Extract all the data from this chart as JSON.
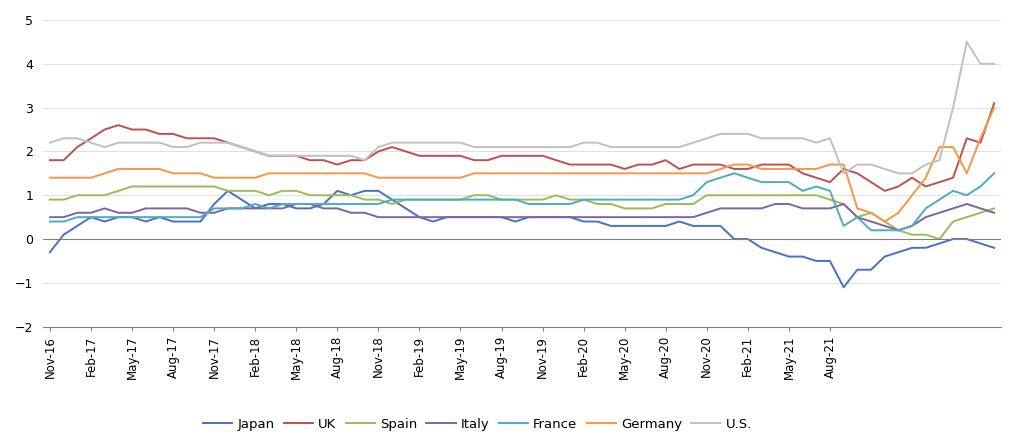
{
  "title": "",
  "ylim": [
    -2,
    5
  ],
  "yticks": [
    -2,
    -1,
    0,
    1,
    2,
    3,
    4,
    5
  ],
  "colors": {
    "Japan": "#4472C4",
    "UK": "#C0504D",
    "Spain": "#9BBB59",
    "Italy": "#8064A2",
    "France": "#4BACC6",
    "Germany": "#F79646",
    "U.S.": "#C0C0C0"
  },
  "series": {
    "Japan": [
      -0.3,
      0.1,
      0.3,
      0.5,
      0.4,
      0.5,
      0.5,
      0.4,
      0.5,
      0.4,
      0.4,
      0.4,
      0.8,
      1.1,
      0.9,
      0.7,
      0.8,
      0.8,
      0.7,
      0.7,
      0.8,
      1.1,
      1.0,
      1.1,
      1.1,
      0.9,
      0.7,
      0.5,
      0.4,
      0.5,
      0.5,
      0.5,
      0.5,
      0.5,
      0.4,
      0.5,
      0.5,
      0.5,
      0.5,
      0.4,
      0.4,
      0.3,
      0.3,
      0.3,
      0.3,
      0.3,
      0.4,
      0.3,
      0.3,
      0.3,
      0.0,
      0.0,
      -0.2,
      -0.3,
      -0.4,
      -0.4,
      -0.5,
      -0.5,
      -1.1,
      -0.7,
      -0.7,
      -0.4,
      -0.3,
      -0.2,
      -0.2,
      -0.1,
      0.0,
      0.0,
      -0.1,
      -0.2
    ],
    "UK": [
      1.8,
      1.8,
      2.1,
      2.3,
      2.5,
      2.6,
      2.5,
      2.5,
      2.4,
      2.4,
      2.3,
      2.3,
      2.3,
      2.2,
      2.1,
      2.0,
      1.9,
      1.9,
      1.9,
      1.8,
      1.8,
      1.7,
      1.8,
      1.8,
      2.0,
      2.1,
      2.0,
      1.9,
      1.9,
      1.9,
      1.9,
      1.8,
      1.8,
      1.9,
      1.9,
      1.9,
      1.9,
      1.8,
      1.7,
      1.7,
      1.7,
      1.7,
      1.6,
      1.7,
      1.7,
      1.8,
      1.6,
      1.7,
      1.7,
      1.7,
      1.6,
      1.6,
      1.7,
      1.7,
      1.7,
      1.5,
      1.4,
      1.3,
      1.6,
      1.5,
      1.3,
      1.1,
      1.2,
      1.4,
      1.2,
      1.3,
      1.4,
      2.3,
      2.2,
      3.1
    ],
    "Spain": [
      0.9,
      0.9,
      1.0,
      1.0,
      1.0,
      1.1,
      1.2,
      1.2,
      1.2,
      1.2,
      1.2,
      1.2,
      1.2,
      1.1,
      1.1,
      1.1,
      1.0,
      1.1,
      1.1,
      1.0,
      1.0,
      1.0,
      1.0,
      0.9,
      0.9,
      0.8,
      0.9,
      0.9,
      0.9,
      0.9,
      0.9,
      1.0,
      1.0,
      0.9,
      0.9,
      0.9,
      0.9,
      1.0,
      0.9,
      0.9,
      0.8,
      0.8,
      0.7,
      0.7,
      0.7,
      0.8,
      0.8,
      0.8,
      1.0,
      1.0,
      1.0,
      1.0,
      1.0,
      1.0,
      1.0,
      1.0,
      1.0,
      0.9,
      0.8,
      0.5,
      0.6,
      0.4,
      0.2,
      0.1,
      0.1,
      0.0,
      0.4,
      0.5,
      0.6,
      0.7
    ],
    "Italy": [
      0.5,
      0.5,
      0.6,
      0.6,
      0.7,
      0.6,
      0.6,
      0.7,
      0.7,
      0.7,
      0.7,
      0.6,
      0.6,
      0.7,
      0.7,
      0.7,
      0.7,
      0.7,
      0.8,
      0.8,
      0.7,
      0.7,
      0.6,
      0.6,
      0.5,
      0.5,
      0.5,
      0.5,
      0.5,
      0.5,
      0.5,
      0.5,
      0.5,
      0.5,
      0.5,
      0.5,
      0.5,
      0.5,
      0.5,
      0.5,
      0.5,
      0.5,
      0.5,
      0.5,
      0.5,
      0.5,
      0.5,
      0.5,
      0.6,
      0.7,
      0.7,
      0.7,
      0.7,
      0.8,
      0.8,
      0.7,
      0.7,
      0.7,
      0.8,
      0.5,
      0.4,
      0.3,
      0.2,
      0.3,
      0.5,
      0.6,
      0.7,
      0.8,
      0.7,
      0.6
    ],
    "France": [
      0.4,
      0.4,
      0.5,
      0.5,
      0.5,
      0.5,
      0.5,
      0.5,
      0.5,
      0.5,
      0.5,
      0.5,
      0.7,
      0.7,
      0.7,
      0.8,
      0.7,
      0.8,
      0.8,
      0.8,
      0.8,
      0.8,
      0.8,
      0.8,
      0.8,
      0.9,
      0.9,
      0.9,
      0.9,
      0.9,
      0.9,
      0.9,
      0.9,
      0.9,
      0.9,
      0.8,
      0.8,
      0.8,
      0.8,
      0.9,
      0.9,
      0.9,
      0.9,
      0.9,
      0.9,
      0.9,
      0.9,
      1.0,
      1.3,
      1.4,
      1.5,
      1.4,
      1.3,
      1.3,
      1.3,
      1.1,
      1.2,
      1.1,
      0.3,
      0.5,
      0.2,
      0.2,
      0.2,
      0.3,
      0.7,
      0.9,
      1.1,
      1.0,
      1.2,
      1.5
    ],
    "Germany": [
      1.4,
      1.4,
      1.4,
      1.4,
      1.5,
      1.6,
      1.6,
      1.6,
      1.6,
      1.5,
      1.5,
      1.5,
      1.4,
      1.4,
      1.4,
      1.4,
      1.5,
      1.5,
      1.5,
      1.5,
      1.5,
      1.5,
      1.5,
      1.5,
      1.4,
      1.4,
      1.4,
      1.4,
      1.4,
      1.4,
      1.4,
      1.5,
      1.5,
      1.5,
      1.5,
      1.5,
      1.5,
      1.5,
      1.5,
      1.5,
      1.5,
      1.5,
      1.5,
      1.5,
      1.5,
      1.5,
      1.5,
      1.5,
      1.5,
      1.6,
      1.7,
      1.7,
      1.6,
      1.6,
      1.6,
      1.6,
      1.6,
      1.7,
      1.7,
      0.7,
      0.6,
      0.4,
      0.6,
      1.0,
      1.4,
      2.1,
      2.1,
      1.5,
      2.3,
      3.0
    ],
    "U.S.": [
      2.2,
      2.3,
      2.3,
      2.2,
      2.1,
      2.2,
      2.2,
      2.2,
      2.2,
      2.1,
      2.1,
      2.2,
      2.2,
      2.2,
      2.1,
      2.0,
      1.9,
      1.9,
      1.9,
      1.9,
      1.9,
      1.9,
      1.9,
      1.8,
      2.1,
      2.2,
      2.2,
      2.2,
      2.2,
      2.2,
      2.2,
      2.1,
      2.1,
      2.1,
      2.1,
      2.1,
      2.1,
      2.1,
      2.1,
      2.2,
      2.2,
      2.1,
      2.1,
      2.1,
      2.1,
      2.1,
      2.1,
      2.2,
      2.3,
      2.4,
      2.4,
      2.4,
      2.3,
      2.3,
      2.3,
      2.3,
      2.2,
      2.3,
      1.5,
      1.7,
      1.7,
      1.6,
      1.5,
      1.5,
      1.7,
      1.8,
      3.0,
      4.5,
      4.0,
      4.0
    ]
  },
  "xtick_labels": [
    "Nov-16",
    "Feb-17",
    "May-17",
    "Aug-17",
    "Nov-17",
    "Feb-18",
    "May-18",
    "Aug-18",
    "Nov-18",
    "Feb-19",
    "May-19",
    "Aug-19",
    "Nov-19",
    "Feb-20",
    "May-20",
    "Aug-20",
    "Nov-20",
    "Feb-21",
    "May-21",
    "Aug-21"
  ],
  "legend_order": [
    "Japan",
    "UK",
    "Spain",
    "Italy",
    "France",
    "Germany",
    "U.S."
  ]
}
